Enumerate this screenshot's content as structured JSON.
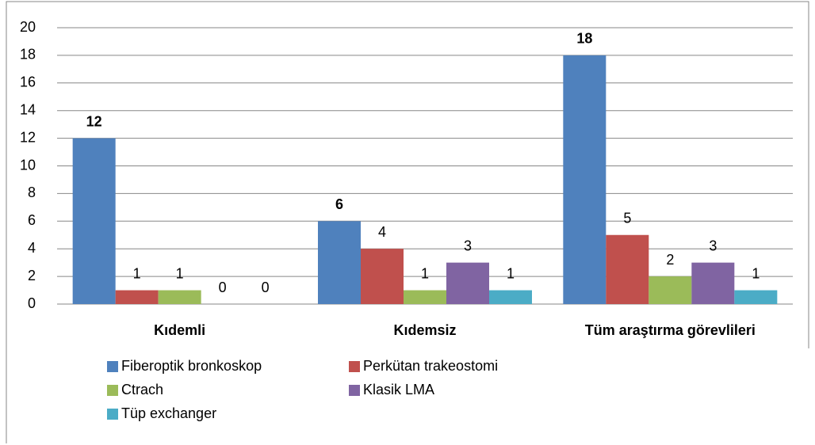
{
  "chart_data": {
    "type": "bar",
    "categories": [
      "Kıdemli",
      "Kıdemsiz",
      "Tüm araştırma görevlileri"
    ],
    "series": [
      {
        "name": "Fiberoptik bronkoskop",
        "color": "#4f81bd",
        "values": [
          12,
          6,
          18
        ]
      },
      {
        "name": "Perkütan trakeostomi",
        "color": "#c0504d",
        "values": [
          1,
          4,
          5
        ]
      },
      {
        "name": "Ctrach",
        "color": "#9bbb59",
        "values": [
          1,
          1,
          2
        ]
      },
      {
        "name": "Klasik LMA",
        "color": "#8064a2",
        "values": [
          0,
          3,
          3
        ]
      },
      {
        "name": "Tüp exchanger",
        "color": "#4bacc6",
        "values": [
          0,
          1,
          1
        ]
      }
    ],
    "ylim": [
      0,
      20
    ],
    "yticks": [
      0,
      2,
      4,
      6,
      8,
      10,
      12,
      14,
      16,
      18,
      20
    ],
    "grid": true,
    "legend": "bottom"
  }
}
